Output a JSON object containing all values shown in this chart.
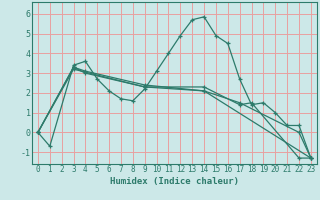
{
  "title": "",
  "xlabel": "Humidex (Indice chaleur)",
  "bg_color": "#cce8e8",
  "line_color": "#2d7b6b",
  "grid_color": "#e8a0a0",
  "xlim": [
    -0.5,
    23.5
  ],
  "ylim": [
    -1.6,
    6.6
  ],
  "yticks": [
    -1,
    0,
    1,
    2,
    3,
    4,
    5,
    6
  ],
  "xticks": [
    0,
    1,
    2,
    3,
    4,
    5,
    6,
    7,
    8,
    9,
    10,
    11,
    12,
    13,
    14,
    15,
    16,
    17,
    18,
    19,
    20,
    21,
    22,
    23
  ],
  "lines": [
    {
      "x": [
        0,
        1,
        3,
        4,
        5,
        6,
        7,
        8,
        9,
        10,
        11,
        12,
        13,
        14,
        15,
        16,
        17,
        18,
        19,
        20,
        21,
        22,
        23
      ],
      "y": [
        0.0,
        -0.7,
        3.4,
        3.6,
        2.7,
        2.1,
        1.7,
        1.6,
        2.2,
        3.1,
        4.0,
        4.9,
        5.7,
        5.85,
        4.9,
        4.5,
        2.7,
        1.4,
        1.5,
        1.0,
        0.35,
        0.35,
        -1.3
      ]
    },
    {
      "x": [
        0,
        3,
        4,
        9,
        14,
        17,
        18,
        22,
        23
      ],
      "y": [
        0.0,
        3.3,
        3.0,
        2.3,
        2.3,
        1.4,
        1.5,
        -1.3,
        -1.3
      ]
    },
    {
      "x": [
        0,
        3,
        4,
        9,
        14,
        17,
        22,
        23
      ],
      "y": [
        0.0,
        3.3,
        3.1,
        2.4,
        2.1,
        1.5,
        0.0,
        -1.3
      ]
    },
    {
      "x": [
        0,
        3,
        9,
        14,
        23
      ],
      "y": [
        0.0,
        3.2,
        2.3,
        2.1,
        -1.3
      ]
    }
  ]
}
